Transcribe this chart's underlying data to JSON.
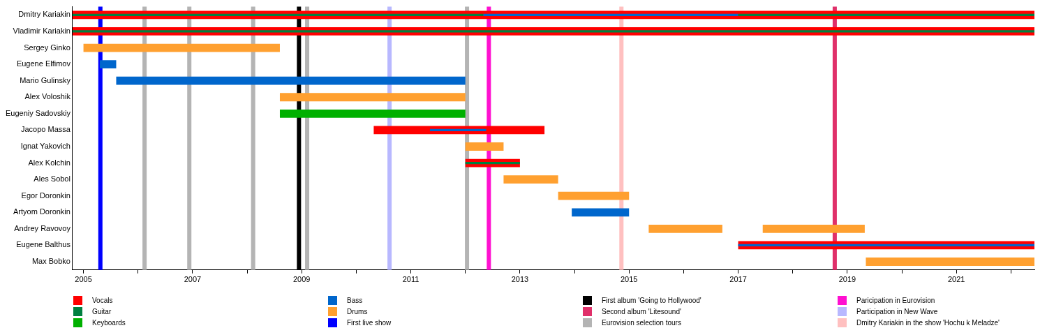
{
  "chart_data": {
    "type": "bar",
    "orientation": "horizontal",
    "categories": [
      "Dmitry Kariakin",
      "Vladimir Kariakin",
      "Sergey Ginko",
      "Eugene Elfimov",
      "Mario Gulinsky",
      "Alex Voloshik",
      "Eugeniy Sadovskiy",
      "Jacopo Massa",
      "Ignat Yakovich",
      "Alex Kolchin",
      "Ales Sobol",
      "Egor Doronkin",
      "Artyom Doronkin",
      "Andrey Ravovoy",
      "Eugene Balthus",
      "Max Bobko"
    ],
    "series": [
      {
        "name": "Vocals",
        "color": "#ff0000",
        "base": [
          2004.8,
          2004.8,
          null,
          null,
          null,
          null,
          null,
          2010.32,
          null,
          2012.0,
          null,
          null,
          null,
          null,
          2017.0,
          null
        ],
        "values": [
          17.63,
          17.63,
          null,
          null,
          null,
          null,
          null,
          3.13,
          null,
          1.0,
          null,
          null,
          null,
          null,
          5.43,
          null
        ]
      },
      {
        "name": "Guitar",
        "color": "#008040",
        "base": [
          2004.8,
          2004.8,
          null,
          null,
          null,
          null,
          null,
          null,
          null,
          2012.0,
          null,
          null,
          null,
          null,
          null,
          null
        ],
        "values": [
          7.53,
          17.63,
          null,
          null,
          null,
          null,
          null,
          null,
          null,
          1.0,
          null,
          null,
          null,
          null,
          null,
          null
        ]
      },
      {
        "name": "Keyboards",
        "color": "#00b000",
        "base": [
          null,
          null,
          null,
          null,
          null,
          null,
          2008.6,
          null,
          null,
          null,
          null,
          null,
          null,
          null,
          null,
          null
        ],
        "values": [
          null,
          null,
          null,
          null,
          null,
          null,
          3.4,
          null,
          null,
          null,
          null,
          null,
          null,
          null,
          null,
          null
        ]
      },
      {
        "name": "Bass",
        "color": "#0066cc",
        "base": [
          2012.33,
          null,
          null,
          2005.3,
          2005.6,
          null,
          null,
          2011.35,
          null,
          null,
          null,
          null,
          2013.95,
          null,
          2017.0,
          null
        ],
        "values": [
          4.67,
          null,
          null,
          0.3,
          6.4,
          null,
          null,
          1.03,
          null,
          null,
          null,
          null,
          1.05,
          null,
          5.43,
          null
        ]
      },
      {
        "name": "Drums",
        "color": "#ffa030",
        "base": [
          null,
          null,
          2005.0,
          null,
          null,
          2008.6,
          null,
          null,
          2012.0,
          null,
          2012.7,
          2013.7,
          null,
          2015.36,
          null,
          2019.34
        ],
        "values": [
          null,
          null,
          3.6,
          null,
          null,
          3.4,
          null,
          null,
          0.7,
          null,
          1.0,
          1.3,
          null,
          1.35,
          null,
          3.09
        ]
      },
      {
        "color": "#008040",
        "base": [
          2017.0,
          null,
          null,
          null,
          null,
          null,
          null,
          null,
          null,
          null,
          null,
          null,
          null,
          null,
          null,
          null
        ],
        "values": [
          5.43,
          null,
          null,
          null,
          null,
          null,
          null,
          null,
          null,
          null,
          null,
          null,
          null,
          null,
          null,
          null
        ]
      },
      {
        "color": "#ffa030",
        "base": [
          null,
          null,
          null,
          null,
          null,
          null,
          null,
          null,
          null,
          null,
          null,
          null,
          null,
          2017.45,
          null,
          null
        ],
        "values": [
          null,
          null,
          null,
          null,
          null,
          null,
          null,
          null,
          null,
          null,
          null,
          null,
          null,
          1.87,
          null,
          null
        ]
      }
    ],
    "xlim": [
      2004.8,
      2022.43
    ],
    "xticks": [
      2005,
      {
        "value": 2006,
        "label": null
      },
      2007,
      {
        "value": 2008,
        "label": null
      },
      2009,
      {
        "value": 2010,
        "label": null
      },
      2011,
      {
        "value": 2012,
        "label": null
      },
      2013,
      {
        "value": 2014,
        "label": null
      },
      2015,
      {
        "value": 2016,
        "label": null
      },
      2017,
      {
        "value": 2018,
        "label": null
      },
      2019,
      {
        "value": 2020,
        "label": null
      },
      2021,
      {
        "value": 2022,
        "label": null
      }
    ],
    "ref_lines": [
      {
        "axis": "x",
        "value": 2005.31,
        "label": "First live show",
        "color": "#0000ff"
      },
      {
        "axis": "x",
        "value": 2008.95,
        "label": "First album 'Going to Hollywood'",
        "color": "#000000"
      },
      {
        "axis": "x",
        "value": 2018.77,
        "label": "Second album 'Litesound'",
        "color": "#e0306a"
      },
      {
        "axis": "x",
        "value": 2006.12,
        "label": "Eurovision selection tours",
        "color": "#b4b4b4"
      },
      {
        "axis": "x",
        "value": 2006.94,
        "color": "#b4b4b4"
      },
      {
        "axis": "x",
        "value": 2008.11,
        "color": "#b4b4b4"
      },
      {
        "axis": "x",
        "value": 2009.1,
        "color": "#b4b4b4"
      },
      {
        "axis": "x",
        "value": 2012.03,
        "color": "#b4b4b4"
      },
      {
        "axis": "x",
        "value": 2012.43,
        "label": "Paricipation in Eurovision",
        "color": "#ff10d0"
      },
      {
        "axis": "x",
        "value": 2010.61,
        "label": "Participation in New Wave",
        "color": "#b8b8ff"
      },
      {
        "axis": "x",
        "value": 2014.86,
        "label": "Dmitry Kariakin in the show 'Hochu k Meladze'",
        "color": "#ffc0c0"
      }
    ],
    "legend": "bottom",
    "grid": false
  }
}
